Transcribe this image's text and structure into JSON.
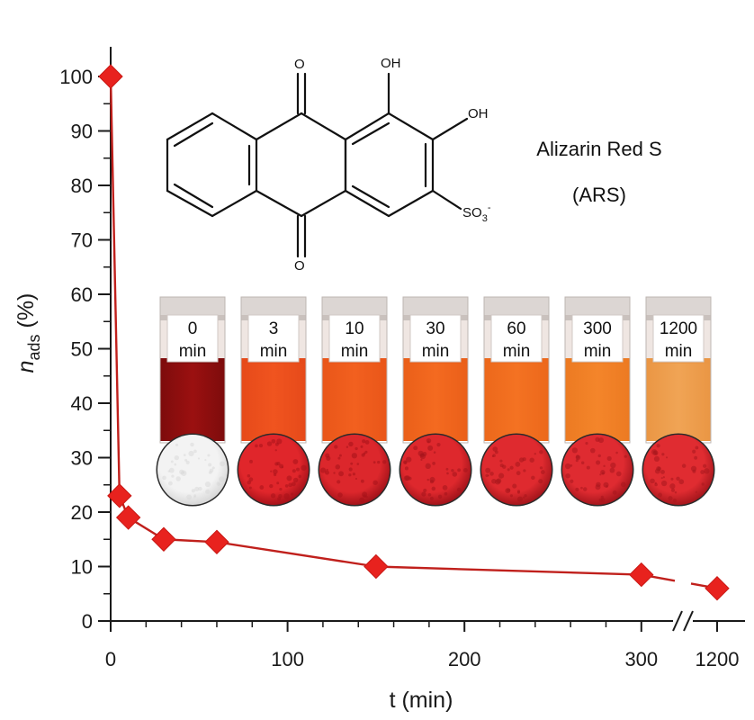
{
  "chart_data": {
    "type": "line",
    "title": "",
    "xlabel": "t (min)",
    "ylabel_main": "n",
    "ylabel_sub": "ads",
    "ylabel_unit": " (%)",
    "xlim": [
      0,
      1200
    ],
    "ylim": [
      0,
      100
    ],
    "x_axis_break": true,
    "x_ticks": [
      0,
      100,
      200,
      300,
      1200
    ],
    "y_ticks": [
      0,
      10,
      20,
      30,
      40,
      50,
      60,
      70,
      80,
      90,
      100
    ],
    "grid": false,
    "series": [
      {
        "color": "#e8221e",
        "line_color": "#c0201c",
        "marker": "diamond",
        "x": [
          0,
          5,
          10,
          30,
          60,
          150,
          300,
          1200
        ],
        "y": [
          100,
          23,
          19,
          15,
          14.5,
          10,
          8.5,
          6
        ]
      }
    ]
  },
  "structure": {
    "oh_top": "OH",
    "oh_side": "OH",
    "o_top": "O",
    "o_bottom": "O",
    "sulfonate": "SO",
    "sulfonate_sub": "3",
    "sulfonate_sup": "-"
  },
  "compound": {
    "name": "Alizarin Red S",
    "abbrev": "(ARS)"
  },
  "vials": [
    {
      "number": "0",
      "unit": "min",
      "liquid": "#9b1010",
      "liquid_top": "#7d0c0c",
      "powder": "#f3f3f3",
      "powder_dark": "#d8d8d8"
    },
    {
      "number": "3",
      "unit": "min",
      "liquid": "#f0541f",
      "liquid_top": "#e64a1a",
      "powder": "#e0262b",
      "powder_dark": "#a8121a"
    },
    {
      "number": "10",
      "unit": "min",
      "liquid": "#f2601f",
      "liquid_top": "#e95619",
      "powder": "#dc272c",
      "powder_dark": "#a5131a"
    },
    {
      "number": "30",
      "unit": "min",
      "liquid": "#f46a20",
      "liquid_top": "#ea5f19",
      "powder": "#de282d",
      "powder_dark": "#a4141b"
    },
    {
      "number": "60",
      "unit": "min",
      "liquid": "#f47222",
      "liquid_top": "#ec681b",
      "powder": "#df2a2f",
      "powder_dark": "#a6161c"
    },
    {
      "number": "300",
      "unit": "min",
      "liquid": "#f4852a",
      "liquid_top": "#ec7a22",
      "powder": "#df2b31",
      "powder_dark": "#a7161d"
    },
    {
      "number": "1200",
      "unit": "min",
      "liquid": "#f0a455",
      "liquid_top": "#ea9644",
      "powder": "#e02c31",
      "powder_dark": "#a8171d"
    }
  ]
}
